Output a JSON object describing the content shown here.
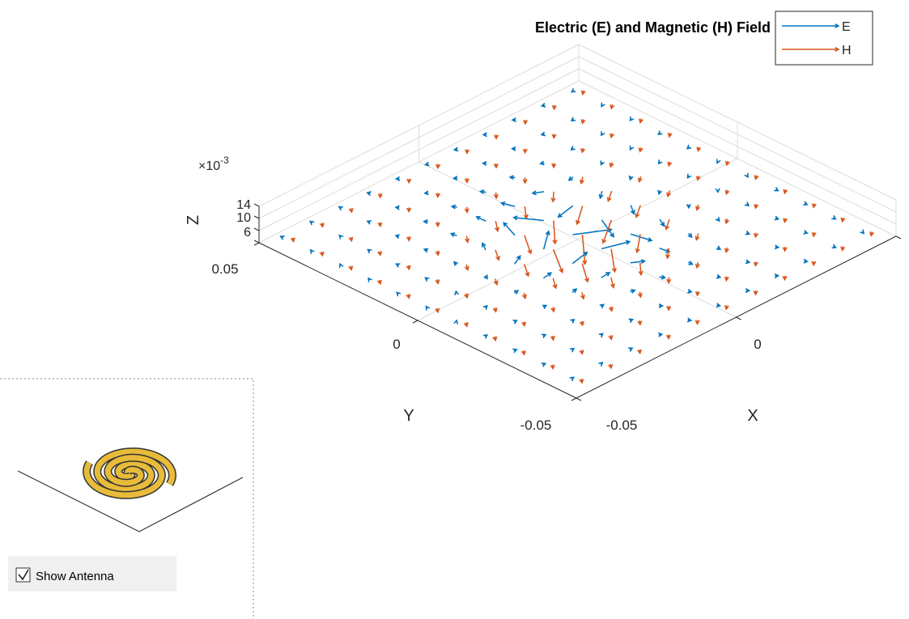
{
  "plot": {
    "title": "Electric (E) and Magnetic (H) Field",
    "legend": [
      {
        "name": "E",
        "color": "#0072bd"
      },
      {
        "name": "H",
        "color": "#d95319"
      }
    ],
    "x_label": "X",
    "y_label": "Y",
    "z_label": "Z",
    "x_ticks": [
      "-0.05",
      "0"
    ],
    "y_ticks": [
      "0.05",
      "0",
      "-0.05"
    ],
    "z_ticks": [
      "6",
      "10",
      "14"
    ],
    "z_exponent_base": "×10",
    "z_exponent_power": "-3"
  },
  "panel": {
    "checkbox_label": "Show Antenna",
    "checked": true
  }
}
